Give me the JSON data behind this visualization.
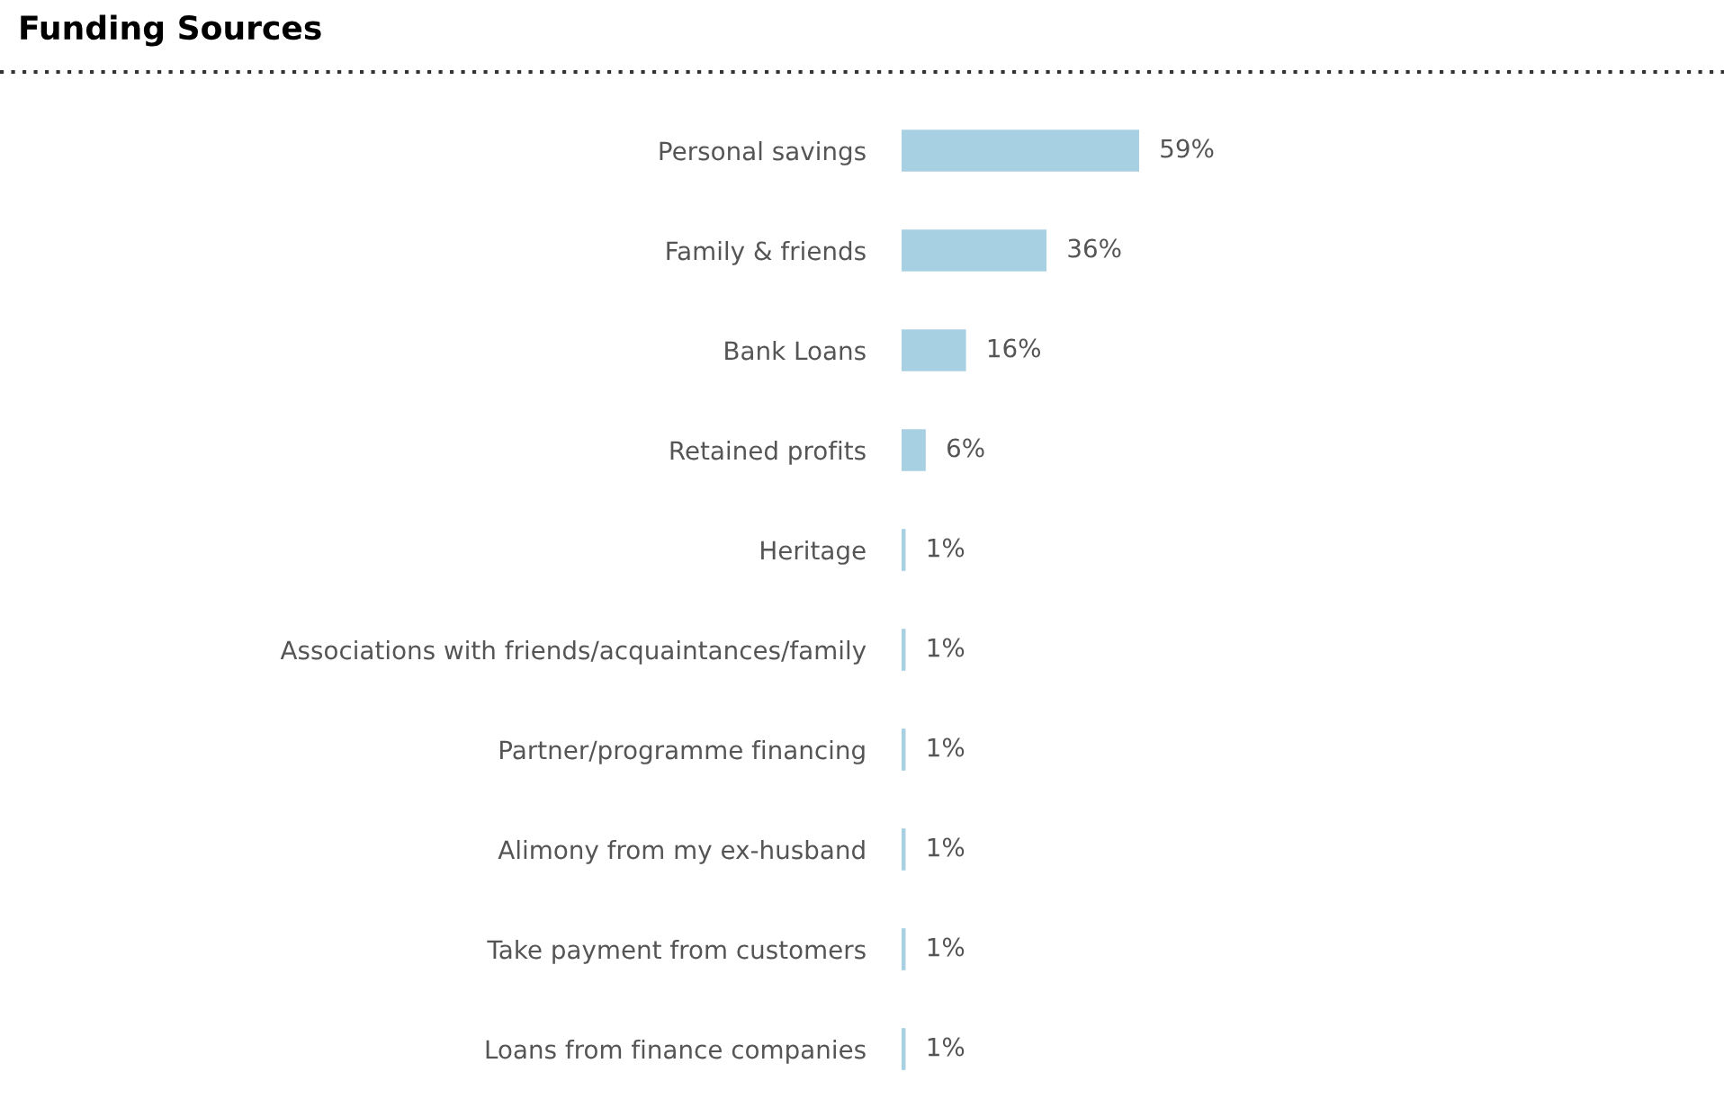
{
  "chart_data": {
    "type": "bar",
    "title": "Funding Sources",
    "orientation": "horizontal",
    "categories": [
      "Personal savings",
      "Family & friends",
      "Bank Loans",
      "Retained profits",
      "Heritage",
      "Associations with friends/acquaintances/family",
      "Partner/programme financing",
      "Alimony from my ex-husband",
      "Take payment from customers",
      "Loans from finance companies"
    ],
    "values": [
      59,
      36,
      16,
      6,
      1,
      1,
      1,
      1,
      1,
      1
    ],
    "value_labels": [
      "59%",
      "36%",
      "16%",
      "6%",
      "1%",
      "1%",
      "1%",
      "1%",
      "1%",
      "1%"
    ],
    "color": "#a8d0e3",
    "grid": false,
    "legend": false
  }
}
